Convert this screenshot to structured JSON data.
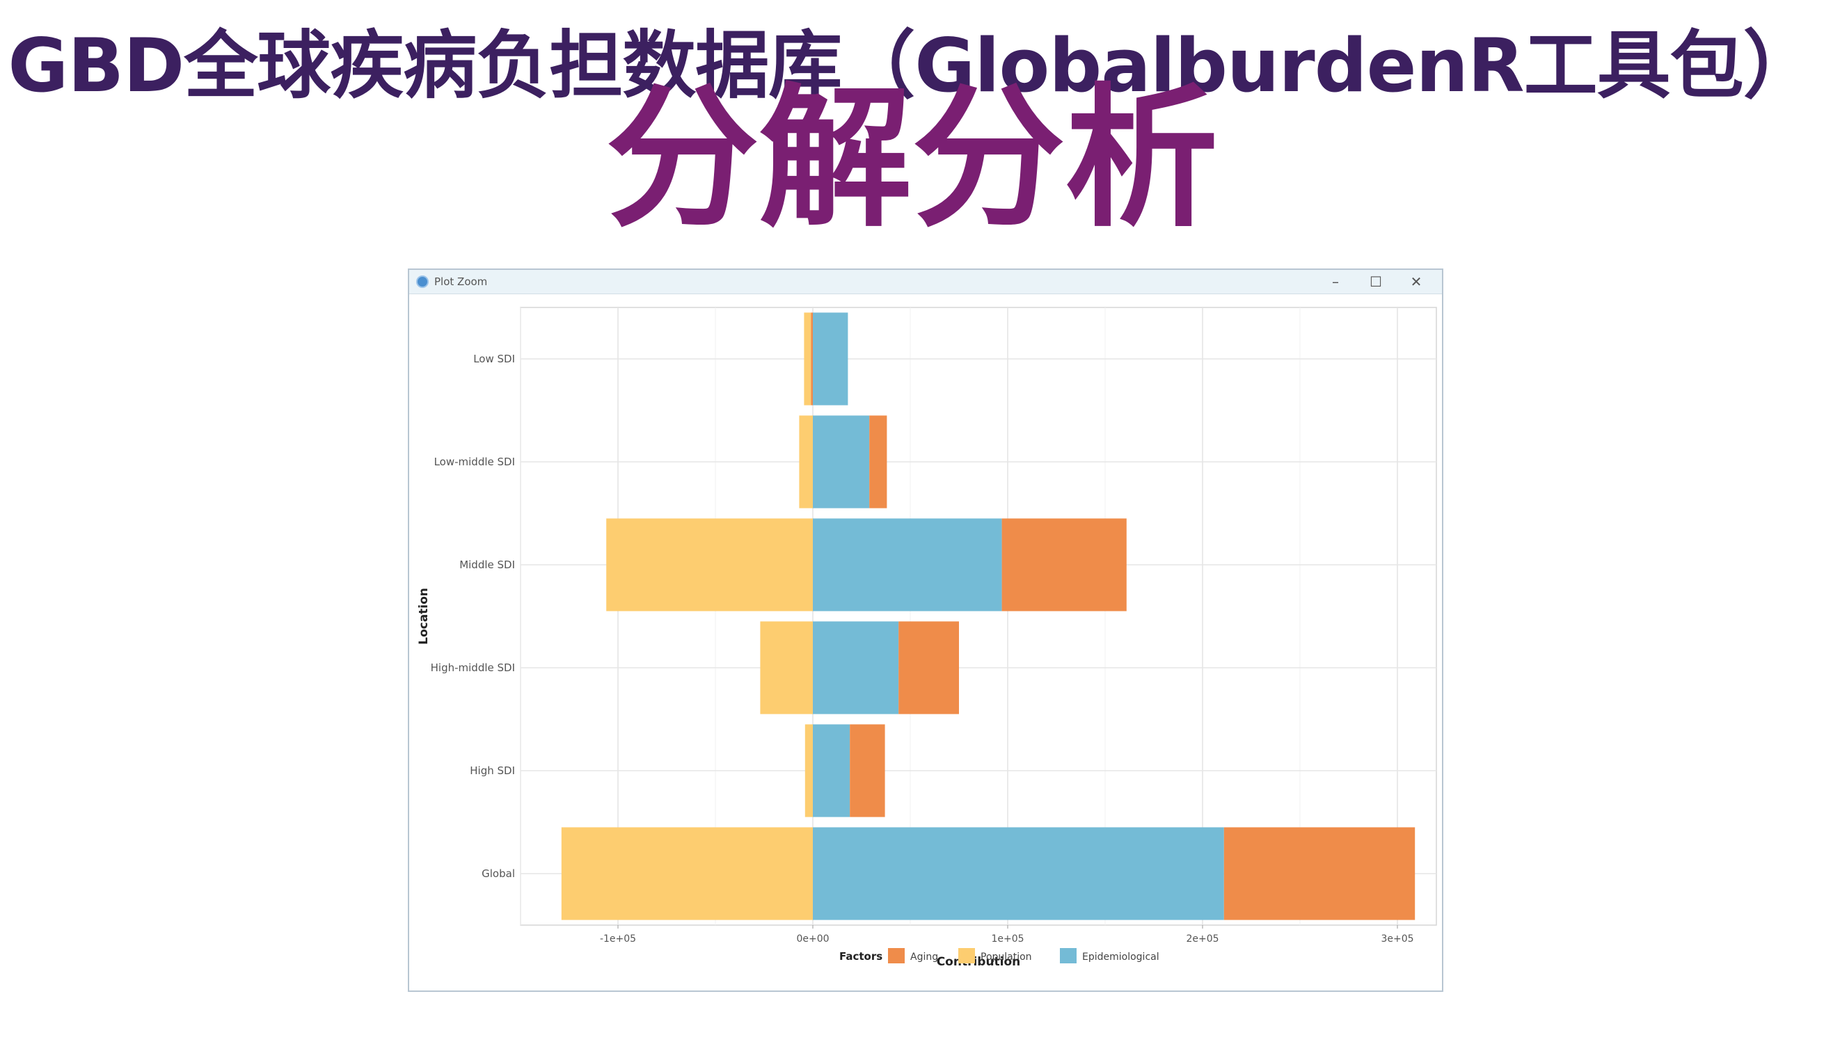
{
  "slide": {
    "title_line1": "GBD全球疾病负担数据库（GlobalburdenR工具包）",
    "title_line2": "分解分析"
  },
  "window": {
    "title": "Plot Zoom",
    "icons": {
      "app": "r-logo-icon",
      "minimize": "minimize-icon",
      "maximize": "maximize-icon",
      "close": "close-icon"
    },
    "minimize_glyph": "–",
    "maximize_glyph": "☐",
    "close_glyph": "✕"
  },
  "chart_data": {
    "type": "bar",
    "orientation": "horizontal",
    "stacked": true,
    "xlabel": "Contribution",
    "ylabel": "Location",
    "xlim": [
      -150000,
      320000
    ],
    "x_ticks": [
      -100000,
      0,
      100000,
      200000,
      300000
    ],
    "x_tick_labels": [
      "-1e+05",
      "0e+00",
      "1e+05",
      "2e+05",
      "3e+05"
    ],
    "categories": [
      "Low SDI",
      "Low-middle SDI",
      "Middle SDI",
      "High-middle SDI",
      "High SDI",
      "Global"
    ],
    "series": [
      {
        "name": "Aging",
        "color": "#ef8c4a",
        "values": [
          -1000,
          9000,
          64000,
          31000,
          18000,
          98000
        ]
      },
      {
        "name": "Population",
        "color": "#fdcd70",
        "values": [
          -3500,
          -7000,
          -106000,
          -27000,
          -4000,
          -129000
        ]
      },
      {
        "name": "Epidemiological",
        "color": "#74bbd6",
        "values": [
          18000,
          29000,
          97000,
          44000,
          19000,
          211000
        ]
      }
    ],
    "legend": {
      "title": "Factors",
      "position": "bottom",
      "order": [
        "Aging",
        "Population",
        "Epidemiological"
      ]
    },
    "grid": true
  }
}
